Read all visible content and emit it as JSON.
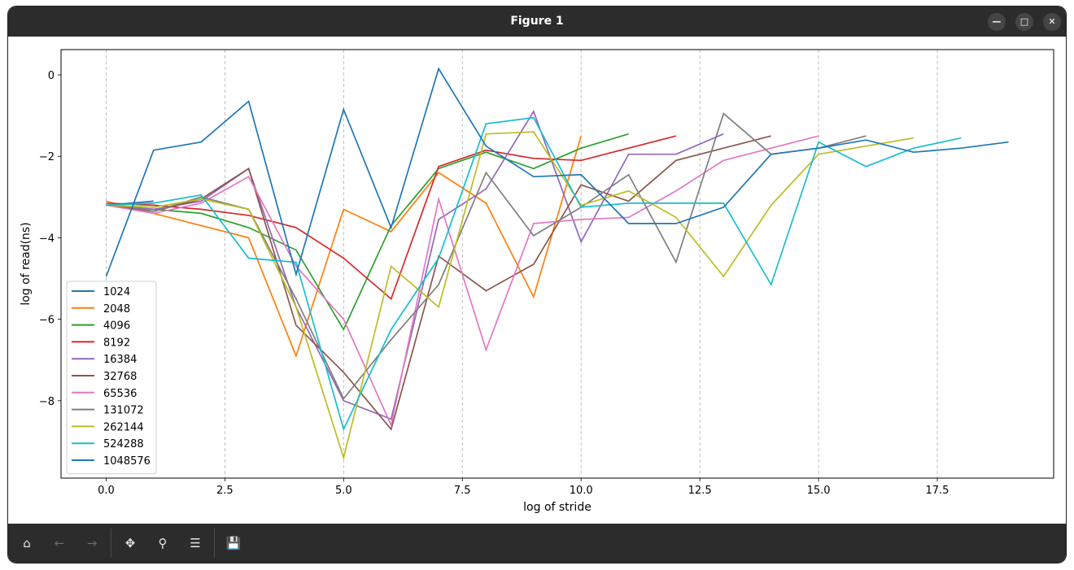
{
  "window": {
    "title": "Figure 1",
    "minimize_icon": "minimize-icon",
    "maximize_icon": "maximize-icon",
    "close_icon": "close-icon"
  },
  "toolbar": {
    "items": [
      "home-icon",
      "back-arrow-icon",
      "forward-arrow-icon",
      "pan-icon",
      "zoom-icon",
      "configure-subplots-icon",
      "save-icon"
    ]
  },
  "chart_data": {
    "type": "line",
    "title": "",
    "xlabel": "log of stride",
    "ylabel": "log of read(ns)",
    "xlim": [
      -0.95,
      19.95
    ],
    "ylim": [
      -9.9,
      0.62
    ],
    "xticks": [
      "0.0",
      "2.5",
      "5.0",
      "7.5",
      "10.0",
      "12.5",
      "15.0",
      "17.5"
    ],
    "yticks": [
      "0",
      "−2",
      "−4",
      "−6",
      "−8"
    ],
    "grid": "vertical dashed",
    "legend_position": "lower-left",
    "series": [
      {
        "name": "1024",
        "color": "#1f77b4",
        "values": [
          -3.2,
          -3.1
        ]
      },
      {
        "name": "2048",
        "color": "#ff7f0e",
        "values": [
          -3.1,
          -3.4,
          -3.7,
          -4.0,
          -6.9,
          -3.3,
          -3.85,
          -2.4,
          -3.15,
          -5.45,
          -1.5
        ]
      },
      {
        "name": "4096",
        "color": "#2ca02c",
        "values": [
          -3.2,
          -3.3,
          -3.4,
          -3.75,
          -4.3,
          -6.25,
          -3.7,
          -2.3,
          -1.9,
          -2.3,
          -1.8,
          -1.45
        ]
      },
      {
        "name": "8192",
        "color": "#d62728",
        "values": [
          -3.15,
          -3.2,
          -3.3,
          -3.45,
          -3.75,
          -4.5,
          -5.5,
          -2.25,
          -1.85,
          -2.05,
          -2.1,
          -1.8,
          -1.5
        ]
      },
      {
        "name": "16384",
        "color": "#9467bd",
        "values": [
          -3.2,
          -3.3,
          -3.1,
          -2.3,
          -5.7,
          -8.0,
          -8.45,
          -3.55,
          -2.8,
          -0.9,
          -4.1,
          -1.95,
          -1.95,
          -1.45
        ]
      },
      {
        "name": "32768",
        "color": "#8c564b",
        "values": [
          -3.2,
          -3.35,
          -3.05,
          -2.3,
          -6.15,
          -7.3,
          -8.7,
          -4.45,
          -5.3,
          -4.65,
          -2.7,
          -3.1,
          -2.1,
          -1.8,
          -1.5
        ]
      },
      {
        "name": "65536",
        "color": "#e377c2",
        "values": [
          -3.2,
          -3.4,
          -3.15,
          -2.5,
          -4.7,
          -6.0,
          -8.6,
          -3.05,
          -6.75,
          -3.65,
          -3.55,
          -3.5,
          -2.85,
          -2.1,
          -1.8,
          -1.5
        ]
      },
      {
        "name": "131072",
        "color": "#7f7f7f",
        "values": [
          -3.15,
          -3.35,
          -3.0,
          -3.3,
          -5.5,
          -7.95,
          -6.5,
          -5.15,
          -2.4,
          -3.95,
          -3.25,
          -2.45,
          -4.6,
          -0.95,
          -1.95,
          -1.8,
          -1.5
        ]
      },
      {
        "name": "262144",
        "color": "#bcbd22",
        "values": [
          -3.2,
          -3.25,
          -3.05,
          -3.3,
          -5.7,
          -9.4,
          -4.7,
          -5.7,
          -1.45,
          -1.4,
          -3.2,
          -2.85,
          -3.5,
          -4.95,
          -3.2,
          -1.95,
          -1.75,
          -1.55
        ]
      },
      {
        "name": "524288",
        "color": "#17becf",
        "values": [
          -3.2,
          -3.15,
          -2.95,
          -4.5,
          -4.6,
          -8.7,
          -6.25,
          -4.5,
          -1.2,
          -1.05,
          -3.25,
          -3.15,
          -3.15,
          -3.15,
          -5.15,
          -1.65,
          -2.25,
          -1.8,
          -1.55
        ]
      },
      {
        "name": "1048576",
        "color": "#1f77b4",
        "values": [
          -4.95,
          -1.85,
          -1.65,
          -0.65,
          -4.9,
          -0.85,
          -3.75,
          0.15,
          -1.75,
          -2.5,
          -2.45,
          -3.65,
          -3.65,
          -3.25,
          -1.95,
          -1.8,
          -1.6,
          -1.9,
          -1.8,
          -1.65
        ]
      }
    ]
  }
}
